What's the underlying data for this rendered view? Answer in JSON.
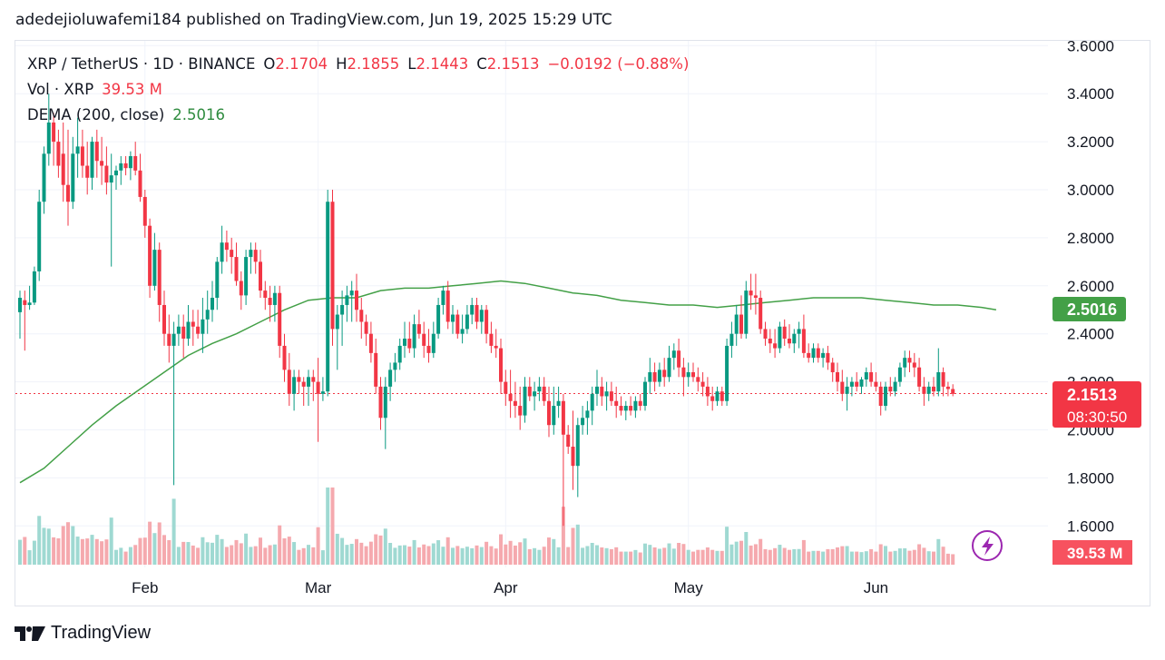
{
  "header": "adedejioluwafemi184 published on TradingView.com, Jun 19, 2025 15:29 UTC",
  "legend": {
    "symbol": "XRP / TetherUS · 1D · BINANCE",
    "open_label": "O",
    "open": "2.1704",
    "high_label": "H",
    "high": "2.1855",
    "low_label": "L",
    "low": "2.1443",
    "close_label": "C",
    "close": "2.1513",
    "change": "−0.0192 (−0.88%)",
    "vol_label": "Vol · XRP",
    "vol_value": "39.53 M",
    "dema_label": "DEMA (200, close)",
    "dema_value": "2.5016"
  },
  "badges": {
    "dema": "2.5016",
    "price": "2.1513",
    "countdown": "08:30:50",
    "volume": "39.53 M"
  },
  "footer": {
    "brand": "TradingView",
    "logo_icon": "tradingview-logo-icon"
  },
  "colors": {
    "up": "#26a69a",
    "down": "#f23645",
    "up_candle": "#089981",
    "dema": "#43a047",
    "price_line": "#f23645"
  },
  "chart_data": {
    "type": "candlestick",
    "symbol": "XRP / TetherUS",
    "interval": "1D",
    "exchange": "BINANCE",
    "ylim": [
      1.5,
      3.65
    ],
    "y_ticks": [
      "3.6000",
      "3.4000",
      "3.2000",
      "3.0000",
      "2.8000",
      "2.6000",
      "2.4000",
      "2.2000",
      "2.0000",
      "1.8000",
      "1.6000"
    ],
    "x_ticks": [
      "Feb",
      "Mar",
      "Apr",
      "May",
      "Jun"
    ],
    "last_price": 2.1513,
    "dema": [
      [
        0,
        1.78
      ],
      [
        5,
        1.84
      ],
      [
        10,
        1.93
      ],
      [
        15,
        2.02
      ],
      [
        20,
        2.1
      ],
      [
        25,
        2.17
      ],
      [
        30,
        2.24
      ],
      [
        35,
        2.31
      ],
      [
        40,
        2.36
      ],
      [
        45,
        2.4
      ],
      [
        50,
        2.45
      ],
      [
        55,
        2.5
      ],
      [
        60,
        2.54
      ],
      [
        65,
        2.55
      ],
      [
        70,
        2.55
      ],
      [
        75,
        2.58
      ],
      [
        80,
        2.59
      ],
      [
        85,
        2.59
      ],
      [
        90,
        2.6
      ],
      [
        95,
        2.61
      ],
      [
        100,
        2.62
      ],
      [
        105,
        2.61
      ],
      [
        110,
        2.59
      ],
      [
        115,
        2.57
      ],
      [
        120,
        2.56
      ],
      [
        125,
        2.54
      ],
      [
        130,
        2.53
      ],
      [
        135,
        2.52
      ],
      [
        140,
        2.52
      ],
      [
        145,
        2.51
      ],
      [
        150,
        2.52
      ],
      [
        155,
        2.53
      ],
      [
        160,
        2.54
      ],
      [
        165,
        2.55
      ],
      [
        170,
        2.55
      ],
      [
        175,
        2.55
      ],
      [
        180,
        2.54
      ],
      [
        185,
        2.53
      ],
      [
        190,
        2.52
      ],
      [
        195,
        2.52
      ],
      [
        200,
        2.51
      ],
      [
        203,
        2.5
      ]
    ],
    "ohlc": [
      [
        2.49,
        2.58,
        2.38,
        2.55
      ],
      [
        2.54,
        2.58,
        2.33,
        2.52
      ],
      [
        2.52,
        2.6,
        2.5,
        2.53
      ],
      [
        2.53,
        2.68,
        2.52,
        2.66
      ],
      [
        2.66,
        3.0,
        2.62,
        2.95
      ],
      [
        2.95,
        3.18,
        2.9,
        3.15
      ],
      [
        3.15,
        3.4,
        3.1,
        3.28
      ],
      [
        3.28,
        3.32,
        3.1,
        3.2
      ],
      [
        3.2,
        3.25,
        3.05,
        3.1
      ],
      [
        3.15,
        3.28,
        2.95,
        3.02
      ],
      [
        3.02,
        3.25,
        2.85,
        2.95
      ],
      [
        2.95,
        3.22,
        2.92,
        3.15
      ],
      [
        3.15,
        3.3,
        3.05,
        3.18
      ],
      [
        3.18,
        3.25,
        3.05,
        3.1
      ],
      [
        3.1,
        3.2,
        2.98,
        3.05
      ],
      [
        3.05,
        3.22,
        3.0,
        3.2
      ],
      [
        3.2,
        3.25,
        3.05,
        3.12
      ],
      [
        3.12,
        3.22,
        3.02,
        3.1
      ],
      [
        3.1,
        3.18,
        2.98,
        3.03
      ],
      [
        3.03,
        3.15,
        2.68,
        3.06
      ],
      [
        3.06,
        3.1,
        3.0,
        3.08
      ],
      [
        3.08,
        3.14,
        3.02,
        3.11
      ],
      [
        3.11,
        3.14,
        3.06,
        3.09
      ],
      [
        3.09,
        3.16,
        3.04,
        3.14
      ],
      [
        3.14,
        3.2,
        3.06,
        3.08
      ],
      [
        3.08,
        3.15,
        2.95,
        2.97
      ],
      [
        2.97,
        3.0,
        2.8,
        2.85
      ],
      [
        2.85,
        2.88,
        2.55,
        2.6
      ],
      [
        2.6,
        2.82,
        2.58,
        2.75
      ],
      [
        2.75,
        2.78,
        2.45,
        2.52
      ],
      [
        2.52,
        2.58,
        2.35,
        2.4
      ],
      [
        2.4,
        2.48,
        2.28,
        2.35
      ],
      [
        2.35,
        2.45,
        1.77,
        2.4
      ],
      [
        2.4,
        2.48,
        2.35,
        2.43
      ],
      [
        2.43,
        2.48,
        2.3,
        2.38
      ],
      [
        2.38,
        2.52,
        2.35,
        2.45
      ],
      [
        2.45,
        2.5,
        2.35,
        2.43
      ],
      [
        2.43,
        2.5,
        2.38,
        2.4
      ],
      [
        2.4,
        2.55,
        2.32,
        2.46
      ],
      [
        2.46,
        2.58,
        2.4,
        2.5
      ],
      [
        2.5,
        2.62,
        2.45,
        2.55
      ],
      [
        2.55,
        2.72,
        2.5,
        2.7
      ],
      [
        2.7,
        2.85,
        2.65,
        2.78
      ],
      [
        2.78,
        2.83,
        2.7,
        2.75
      ],
      [
        2.75,
        2.8,
        2.65,
        2.72
      ],
      [
        2.72,
        2.78,
        2.6,
        2.62
      ],
      [
        2.62,
        2.66,
        2.5,
        2.56
      ],
      [
        2.56,
        2.75,
        2.52,
        2.72
      ],
      [
        2.72,
        2.78,
        2.65,
        2.75
      ],
      [
        2.75,
        2.78,
        2.65,
        2.7
      ],
      [
        2.7,
        2.75,
        2.55,
        2.58
      ],
      [
        2.58,
        2.62,
        2.5,
        2.55
      ],
      [
        2.55,
        2.6,
        2.45,
        2.52
      ],
      [
        2.52,
        2.6,
        2.45,
        2.57
      ],
      [
        2.57,
        2.6,
        2.3,
        2.35
      ],
      [
        2.35,
        2.4,
        2.2,
        2.25
      ],
      [
        2.25,
        2.32,
        2.1,
        2.15
      ],
      [
        2.15,
        2.25,
        2.08,
        2.22
      ],
      [
        2.22,
        2.25,
        2.15,
        2.2
      ],
      [
        2.2,
        2.22,
        2.1,
        2.18
      ],
      [
        2.18,
        2.25,
        2.1,
        2.22
      ],
      [
        2.22,
        2.25,
        2.12,
        2.2
      ],
      [
        2.2,
        2.3,
        1.95,
        2.15
      ],
      [
        2.15,
        2.22,
        2.12,
        2.16
      ],
      [
        2.16,
        3.0,
        2.14,
        2.95
      ],
      [
        2.95,
        3.0,
        2.35,
        2.42
      ],
      [
        2.42,
        2.52,
        2.25,
        2.48
      ],
      [
        2.48,
        2.58,
        2.35,
        2.52
      ],
      [
        2.52,
        2.6,
        2.45,
        2.56
      ],
      [
        2.56,
        2.62,
        2.45,
        2.58
      ],
      [
        2.58,
        2.65,
        2.45,
        2.5
      ],
      [
        2.5,
        2.55,
        2.38,
        2.45
      ],
      [
        2.45,
        2.48,
        2.35,
        2.4
      ],
      [
        2.4,
        2.45,
        2.28,
        2.32
      ],
      [
        2.32,
        2.38,
        2.15,
        2.18
      ],
      [
        2.18,
        2.22,
        2.0,
        2.05
      ],
      [
        2.05,
        2.22,
        1.92,
        2.18
      ],
      [
        2.18,
        2.28,
        2.12,
        2.25
      ],
      [
        2.25,
        2.32,
        2.2,
        2.28
      ],
      [
        2.28,
        2.38,
        2.25,
        2.35
      ],
      [
        2.35,
        2.45,
        2.3,
        2.38
      ],
      [
        2.38,
        2.45,
        2.32,
        2.34
      ],
      [
        2.34,
        2.48,
        2.3,
        2.44
      ],
      [
        2.44,
        2.5,
        2.38,
        2.4
      ],
      [
        2.4,
        2.45,
        2.3,
        2.35
      ],
      [
        2.35,
        2.42,
        2.28,
        2.32
      ],
      [
        2.32,
        2.45,
        2.3,
        2.4
      ],
      [
        2.4,
        2.55,
        2.38,
        2.52
      ],
      [
        2.52,
        2.6,
        2.48,
        2.58
      ],
      [
        2.58,
        2.62,
        2.42,
        2.45
      ],
      [
        2.45,
        2.52,
        2.4,
        2.48
      ],
      [
        2.48,
        2.5,
        2.38,
        2.4
      ],
      [
        2.4,
        2.48,
        2.36,
        2.42
      ],
      [
        2.42,
        2.52,
        2.4,
        2.48
      ],
      [
        2.48,
        2.55,
        2.44,
        2.52
      ],
      [
        2.52,
        2.55,
        2.42,
        2.45
      ],
      [
        2.45,
        2.52,
        2.4,
        2.5
      ],
      [
        2.5,
        2.52,
        2.36,
        2.4
      ],
      [
        2.4,
        2.45,
        2.32,
        2.35
      ],
      [
        2.35,
        2.42,
        2.3,
        2.34
      ],
      [
        2.34,
        2.38,
        2.15,
        2.2
      ],
      [
        2.2,
        2.25,
        2.1,
        2.15
      ],
      [
        2.15,
        2.25,
        2.05,
        2.12
      ],
      [
        2.12,
        2.2,
        2.05,
        2.1
      ],
      [
        2.1,
        2.18,
        2.0,
        2.06
      ],
      [
        2.06,
        2.22,
        2.03,
        2.18
      ],
      [
        2.18,
        2.22,
        2.12,
        2.14
      ],
      [
        2.14,
        2.2,
        2.08,
        2.16
      ],
      [
        2.16,
        2.22,
        2.12,
        2.18
      ],
      [
        2.18,
        2.22,
        2.1,
        2.12
      ],
      [
        2.12,
        2.18,
        1.97,
        2.02
      ],
      [
        2.02,
        2.18,
        1.98,
        2.1
      ],
      [
        2.1,
        2.18,
        2.05,
        2.12
      ],
      [
        2.12,
        2.15,
        1.6,
        1.98
      ],
      [
        1.98,
        2.02,
        1.9,
        1.93
      ],
      [
        1.93,
        2.08,
        1.75,
        1.85
      ],
      [
        1.85,
        2.05,
        1.72,
        2.02
      ],
      [
        2.02,
        2.1,
        1.98,
        2.05
      ],
      [
        2.05,
        2.12,
        1.98,
        2.08
      ],
      [
        2.08,
        2.18,
        2.02,
        2.15
      ],
      [
        2.15,
        2.25,
        2.1,
        2.18
      ],
      [
        2.18,
        2.22,
        2.1,
        2.14
      ],
      [
        2.14,
        2.2,
        2.08,
        2.16
      ],
      [
        2.16,
        2.2,
        2.1,
        2.12
      ],
      [
        2.12,
        2.18,
        2.05,
        2.1
      ],
      [
        2.1,
        2.14,
        2.06,
        2.08
      ],
      [
        2.08,
        2.12,
        2.04,
        2.1
      ],
      [
        2.1,
        2.14,
        2.06,
        2.08
      ],
      [
        2.08,
        2.14,
        2.05,
        2.12
      ],
      [
        2.12,
        2.15,
        2.08,
        2.1
      ],
      [
        2.1,
        2.22,
        2.08,
        2.2
      ],
      [
        2.2,
        2.3,
        2.15,
        2.24
      ],
      [
        2.24,
        2.28,
        2.16,
        2.2
      ],
      [
        2.2,
        2.28,
        2.18,
        2.25
      ],
      [
        2.25,
        2.3,
        2.18,
        2.22
      ],
      [
        2.22,
        2.35,
        2.2,
        2.3
      ],
      [
        2.3,
        2.36,
        2.25,
        2.33
      ],
      [
        2.33,
        2.38,
        2.22,
        2.26
      ],
      [
        2.26,
        2.3,
        2.14,
        2.22
      ],
      [
        2.22,
        2.28,
        2.18,
        2.24
      ],
      [
        2.24,
        2.28,
        2.2,
        2.22
      ],
      [
        2.22,
        2.26,
        2.16,
        2.2
      ],
      [
        2.2,
        2.24,
        2.14,
        2.18
      ],
      [
        2.18,
        2.22,
        2.1,
        2.14
      ],
      [
        2.14,
        2.18,
        2.08,
        2.12
      ],
      [
        2.12,
        2.18,
        2.1,
        2.16
      ],
      [
        2.16,
        2.18,
        2.1,
        2.12
      ],
      [
        2.12,
        2.38,
        2.1,
        2.35
      ],
      [
        2.35,
        2.45,
        2.3,
        2.4
      ],
      [
        2.4,
        2.52,
        2.35,
        2.48
      ],
      [
        2.48,
        2.56,
        2.38,
        2.4
      ],
      [
        2.4,
        2.62,
        2.38,
        2.58
      ],
      [
        2.58,
        2.65,
        2.5,
        2.56
      ],
      [
        2.56,
        2.65,
        2.48,
        2.55
      ],
      [
        2.55,
        2.58,
        2.4,
        2.42
      ],
      [
        2.42,
        2.45,
        2.35,
        2.38
      ],
      [
        2.38,
        2.42,
        2.32,
        2.36
      ],
      [
        2.36,
        2.42,
        2.3,
        2.34
      ],
      [
        2.34,
        2.45,
        2.32,
        2.43
      ],
      [
        2.43,
        2.46,
        2.35,
        2.38
      ],
      [
        2.38,
        2.44,
        2.34,
        2.36
      ],
      [
        2.36,
        2.42,
        2.32,
        2.4
      ],
      [
        2.4,
        2.45,
        2.34,
        2.42
      ],
      [
        2.42,
        2.48,
        2.3,
        2.32
      ],
      [
        2.32,
        2.36,
        2.28,
        2.3
      ],
      [
        2.3,
        2.36,
        2.28,
        2.34
      ],
      [
        2.34,
        2.36,
        2.28,
        2.3
      ],
      [
        2.3,
        2.34,
        2.26,
        2.32
      ],
      [
        2.32,
        2.35,
        2.25,
        2.28
      ],
      [
        2.28,
        2.3,
        2.2,
        2.24
      ],
      [
        2.24,
        2.28,
        2.16,
        2.2
      ],
      [
        2.2,
        2.25,
        2.12,
        2.15
      ],
      [
        2.15,
        2.22,
        2.08,
        2.18
      ],
      [
        2.18,
        2.22,
        2.14,
        2.2
      ],
      [
        2.2,
        2.24,
        2.16,
        2.18
      ],
      [
        2.18,
        2.22,
        2.15,
        2.21
      ],
      [
        2.21,
        2.26,
        2.18,
        2.24
      ],
      [
        2.24,
        2.28,
        2.18,
        2.2
      ],
      [
        2.2,
        2.24,
        2.16,
        2.18
      ],
      [
        2.18,
        2.2,
        2.06,
        2.1
      ],
      [
        2.1,
        2.2,
        2.08,
        2.18
      ],
      [
        2.18,
        2.22,
        2.14,
        2.16
      ],
      [
        2.16,
        2.22,
        2.14,
        2.2
      ],
      [
        2.2,
        2.28,
        2.18,
        2.26
      ],
      [
        2.26,
        2.33,
        2.22,
        2.3
      ],
      [
        2.3,
        2.33,
        2.24,
        2.28
      ],
      [
        2.28,
        2.32,
        2.22,
        2.26
      ],
      [
        2.26,
        2.3,
        2.16,
        2.18
      ],
      [
        2.18,
        2.22,
        2.1,
        2.15
      ],
      [
        2.15,
        2.2,
        2.12,
        2.18
      ],
      [
        2.18,
        2.22,
        2.14,
        2.16
      ],
      [
        2.16,
        2.34,
        2.14,
        2.24
      ],
      [
        2.24,
        2.26,
        2.14,
        2.18
      ],
      [
        2.18,
        2.2,
        2.14,
        2.17
      ],
      [
        2.17,
        2.19,
        2.14,
        2.15
      ]
    ]
  }
}
